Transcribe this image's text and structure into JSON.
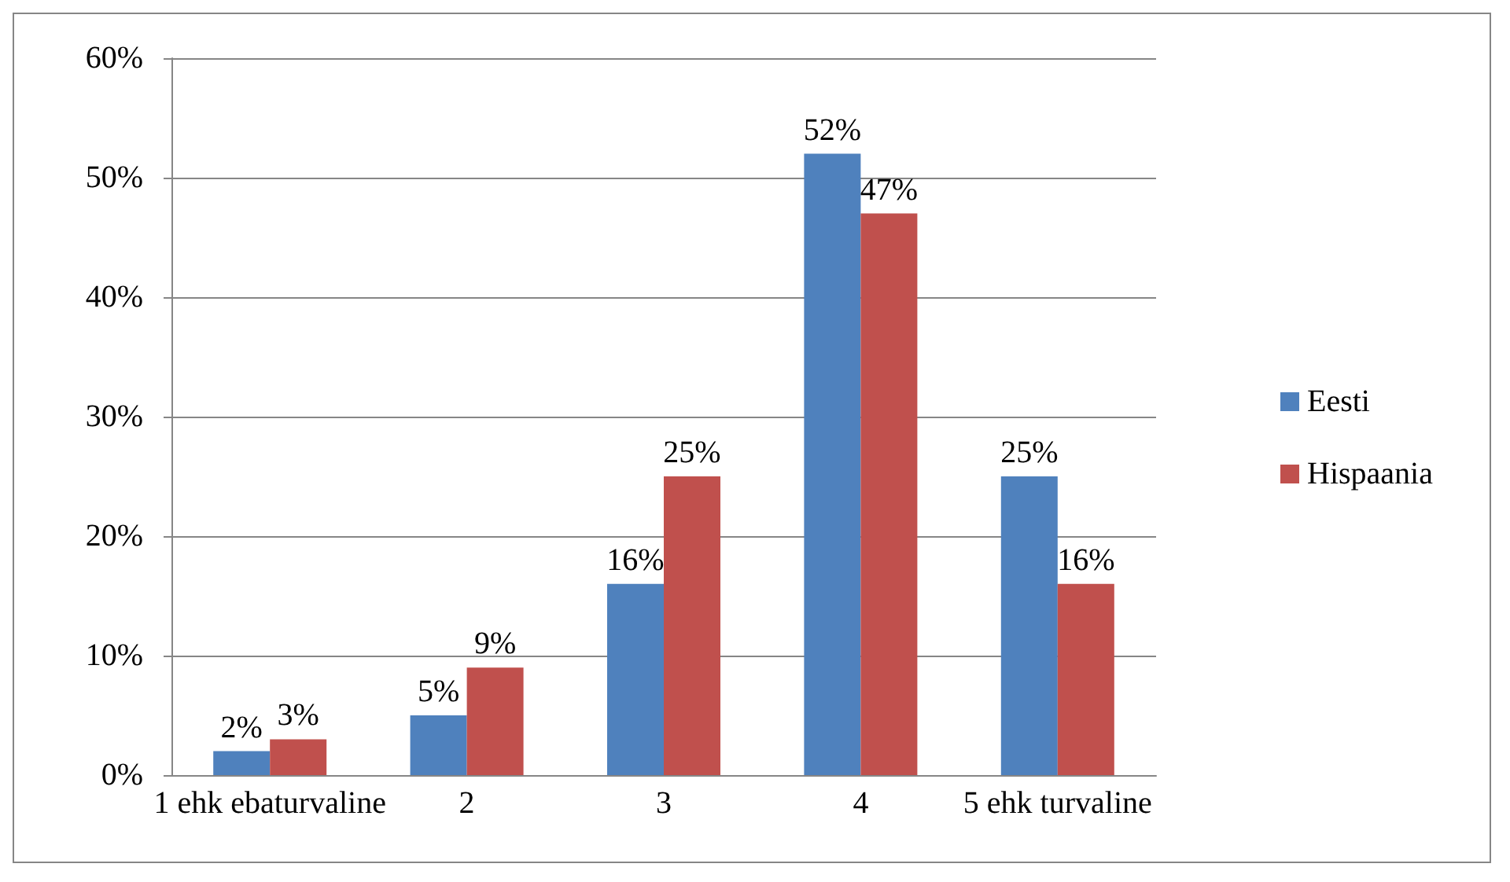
{
  "chart_data": {
    "type": "bar",
    "categories": [
      "1 ehk ebaturvaline",
      "2",
      "3",
      "4",
      "5 ehk turvaline"
    ],
    "series": [
      {
        "name": "Eesti",
        "color": "#4f81bd",
        "values": [
          2,
          5,
          16,
          52,
          25
        ],
        "value_labels": [
          "2%",
          "5%",
          "16%",
          "52%",
          "25%"
        ]
      },
      {
        "name": "Hispaania",
        "color": "#c0504d",
        "values": [
          3,
          9,
          25,
          47,
          16
        ],
        "value_labels": [
          "3%",
          "9%",
          "25%",
          "47%",
          "16%"
        ]
      }
    ],
    "ylim": [
      0,
      60
    ],
    "yticks": [
      {
        "value": 0,
        "label": "0%"
      },
      {
        "value": 10,
        "label": "10%"
      },
      {
        "value": 20,
        "label": "20%"
      },
      {
        "value": 30,
        "label": "30%"
      },
      {
        "value": 40,
        "label": "40%"
      },
      {
        "value": 50,
        "label": "50%"
      },
      {
        "value": 60,
        "label": "60%"
      }
    ],
    "grid": "y",
    "legend": "right"
  }
}
